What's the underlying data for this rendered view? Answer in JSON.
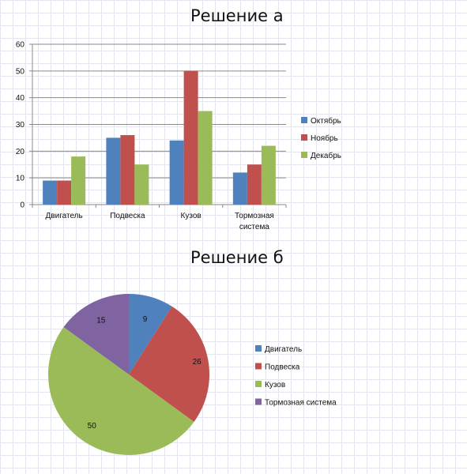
{
  "chart_data": [
    {
      "type": "bar",
      "title": "Решение а",
      "categories": [
        "Двигатель",
        "Подвеска",
        "Кузов",
        "Тормозная система"
      ],
      "category_lines": [
        [
          "Двигатель"
        ],
        [
          "Подвеска"
        ],
        [
          "Кузов"
        ],
        [
          "Тормозная",
          "система"
        ]
      ],
      "series": [
        {
          "name": "Октябрь",
          "values": [
            9,
            25,
            24,
            12
          ],
          "color": "#4f81bd"
        },
        {
          "name": "Ноябрь",
          "values": [
            9,
            26,
            50,
            15
          ],
          "color": "#c0504d"
        },
        {
          "name": "Декабрь",
          "values": [
            18,
            15,
            35,
            22
          ],
          "color": "#9bbb59"
        }
      ],
      "ylim": [
        0,
        60
      ],
      "yticks": [
        0,
        10,
        20,
        30,
        40,
        50,
        60
      ],
      "grid": true,
      "legend": "right"
    },
    {
      "type": "pie",
      "title": "Решение б",
      "categories": [
        "Двигатель",
        "Подвеска",
        "Кузов",
        "Тормозная система"
      ],
      "values": [
        9,
        26,
        50,
        15
      ],
      "colors": [
        "#4f81bd",
        "#c0504d",
        "#9bbb59",
        "#8064a2"
      ],
      "data_labels": true,
      "legend": "right"
    }
  ]
}
